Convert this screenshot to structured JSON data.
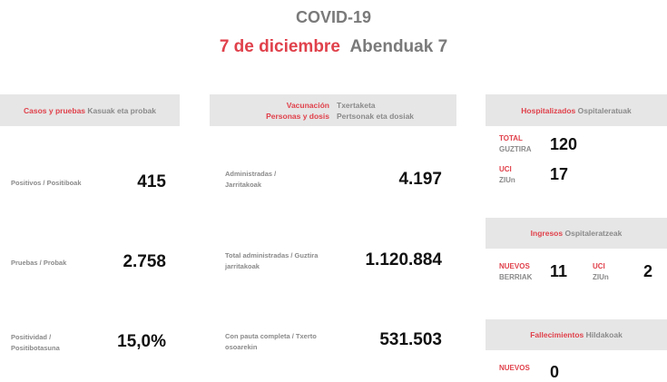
{
  "title": "COVID-19",
  "date": {
    "es": "7 de diciembre",
    "eu": "Abenduak 7"
  },
  "cases": {
    "header_es": "Casos y pruebas",
    "header_eu": "Kasuak eta probak",
    "rows": [
      {
        "label": "Positivos / Positiboak",
        "value": "415"
      },
      {
        "label": "Pruebas / Probak",
        "value": "2.758"
      },
      {
        "label": "Positividad / Positibotasuna",
        "value": "15,0%"
      }
    ]
  },
  "vaccination": {
    "header_es1": "Vacunación",
    "header_eu1": "Txertaketa",
    "header_es2": "Personas y dosis",
    "header_eu2": "Pertsonak eta dosiak",
    "rows": [
      {
        "label": "Administradas / Jarritakoak",
        "value": "4.197"
      },
      {
        "label": "Total administradas / Guztira jarritakoak",
        "value": "1.120.884"
      },
      {
        "label": "Con pauta completa / Txerto osoarekin",
        "value": "531.503"
      }
    ]
  },
  "hospital": {
    "header_es": "Hospitalizados",
    "header_eu": "Ospitaleratuak",
    "total_es": "TOTAL",
    "total_eu": "GUZTIRA",
    "total_value": "120",
    "uci_es": "UCI",
    "uci_eu": "ZIUn",
    "uci_value": "17"
  },
  "admissions": {
    "header_es": "Ingresos",
    "header_eu": "Ospitaleratzeak",
    "new_es": "NUEVOS",
    "new_eu": "BERRIAK",
    "new_value": "11",
    "uci_es": "UCI",
    "uci_eu": "ZIUn",
    "uci_value": "2"
  },
  "deaths": {
    "header_es": "Fallecimientos",
    "header_eu": "Hildakoak",
    "new_es": "NUEVOS",
    "new_value": "0"
  },
  "colors": {
    "accent": "#e0414b",
    "label_gray": "#8a8a8a",
    "header_bg": "#e6e6e6"
  }
}
